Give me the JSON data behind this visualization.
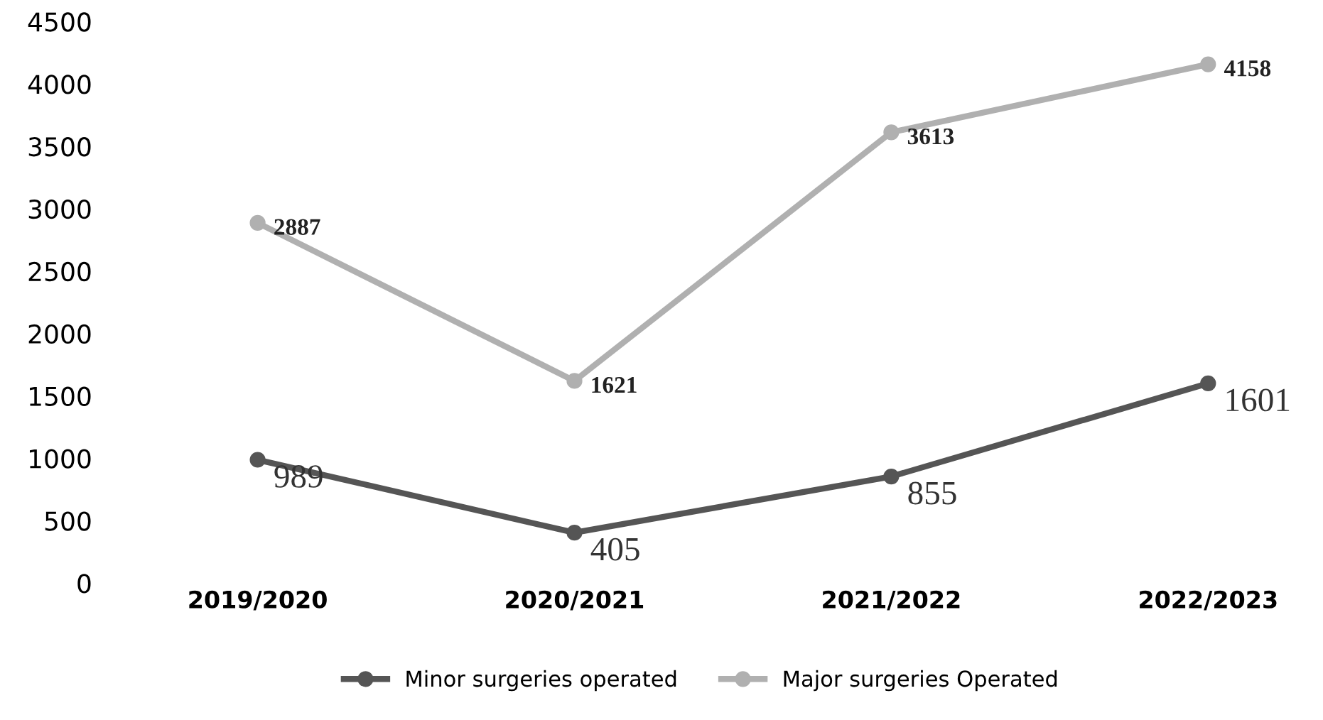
{
  "chart_data": {
    "type": "line",
    "categories": [
      "2019/2020",
      "2020/2021",
      "2021/2022",
      "2022/2023"
    ],
    "series": [
      {
        "name": "Minor surgeries operated",
        "color": "#555555",
        "values": [
          989,
          405,
          855,
          1601
        ]
      },
      {
        "name": "Major surgeries Operated",
        "color": "#b0b0b0",
        "values": [
          2887,
          1621,
          3613,
          4158
        ]
      }
    ],
    "ylim": [
      0,
      4500
    ],
    "yticks": [
      0,
      500,
      1000,
      1500,
      2000,
      2500,
      3000,
      3500,
      4000,
      4500
    ],
    "grid": false,
    "legend": "bottom",
    "marker": "circle",
    "line_style": "solid",
    "data_labels": true
  }
}
